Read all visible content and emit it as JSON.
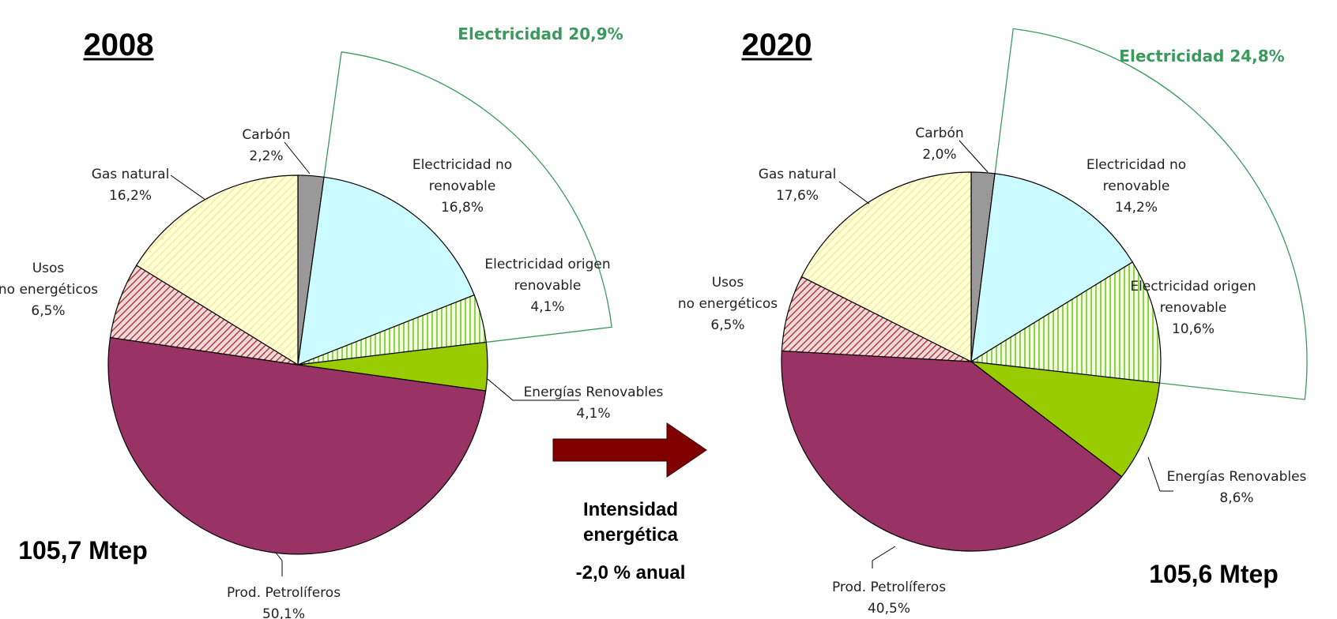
{
  "colors": {
    "carbon": "#999999",
    "elec_no_renovable": "#ccfbff",
    "elec_renovable_bg": "#f2ffe0",
    "elec_renovable_lines": "#92d050",
    "renovables": "#99cc00",
    "petroliferos": "#993366",
    "usos_bg": "#f2d8d8",
    "usos_lines": "#a52a2a",
    "gas_bg": "#ffffd6",
    "gas_lines": "#f2e28a",
    "electricity_sector": "#3a9a5c",
    "arrow": "#800000"
  },
  "labels": {
    "intensidad_1": "Intensidad",
    "intensidad_2": "energética",
    "intensidad_rate": "-2,0 % anual"
  },
  "chart_data": [
    {
      "type": "pie",
      "title": "2008",
      "total": "105,7 Mtep",
      "electricity_label": "Electricidad 20,9%",
      "slices": [
        {
          "key": "carbon",
          "value": 2.2,
          "label": [
            "Carbón",
            "2,2%"
          ]
        },
        {
          "key": "elec_no_renovable",
          "value": 16.8,
          "label": [
            "Electricidad no",
            "renovable",
            "16,8%"
          ]
        },
        {
          "key": "elec_renovable",
          "value": 4.1,
          "label": [
            "Electricidad origen",
            "renovable",
            "4,1%"
          ]
        },
        {
          "key": "renovables",
          "value": 4.1,
          "label": [
            "Energías Renovables",
            "4,1%"
          ]
        },
        {
          "key": "petroliferos",
          "value": 50.1,
          "label": [
            "Prod. Petrolíferos",
            "50,1%"
          ]
        },
        {
          "key": "usos",
          "value": 6.5,
          "label": [
            "Usos",
            "no energéticos",
            "6,5%"
          ]
        },
        {
          "key": "gas",
          "value": 16.2,
          "label": [
            "Gas natural",
            "16,2%"
          ]
        }
      ]
    },
    {
      "type": "pie",
      "title": "2020",
      "total": "105,6 Mtep",
      "electricity_label": "Electricidad 24,8%",
      "slices": [
        {
          "key": "carbon",
          "value": 2.0,
          "label": [
            "Carbón",
            "2,0%"
          ]
        },
        {
          "key": "elec_no_renovable",
          "value": 14.2,
          "label": [
            "Electricidad no",
            "renovable",
            "14,2%"
          ]
        },
        {
          "key": "elec_renovable",
          "value": 10.6,
          "label": [
            "Electricidad origen",
            "renovable",
            "10,6%"
          ]
        },
        {
          "key": "renovables",
          "value": 8.6,
          "label": [
            "Energías Renovables",
            "8,6%"
          ]
        },
        {
          "key": "petroliferos",
          "value": 40.5,
          "label": [
            "Prod. Petrolíferos",
            "40,5%"
          ]
        },
        {
          "key": "usos",
          "value": 6.5,
          "label": [
            "Usos",
            "no energéticos",
            "6,5%"
          ]
        },
        {
          "key": "gas",
          "value": 17.6,
          "label": [
            "Gas natural",
            "17,6%"
          ]
        }
      ]
    }
  ]
}
